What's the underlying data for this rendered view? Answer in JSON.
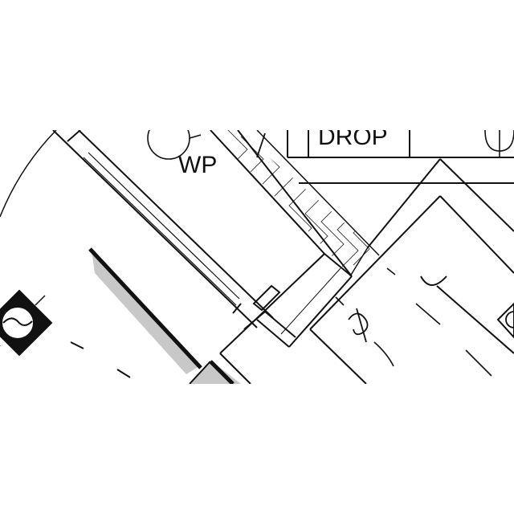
{
  "drawing": {
    "labels": {
      "drop": "DROP",
      "wp": "WP"
    },
    "colors": {
      "line": "#111111",
      "shade": "#c8c8c8",
      "background": "#ffffff"
    },
    "symbols": [
      "wp-outlet-symbol",
      "door-swing-arc",
      "appliance-symbol",
      "switch-symbol",
      "fixture-symbol",
      "hatched-wall"
    ]
  }
}
